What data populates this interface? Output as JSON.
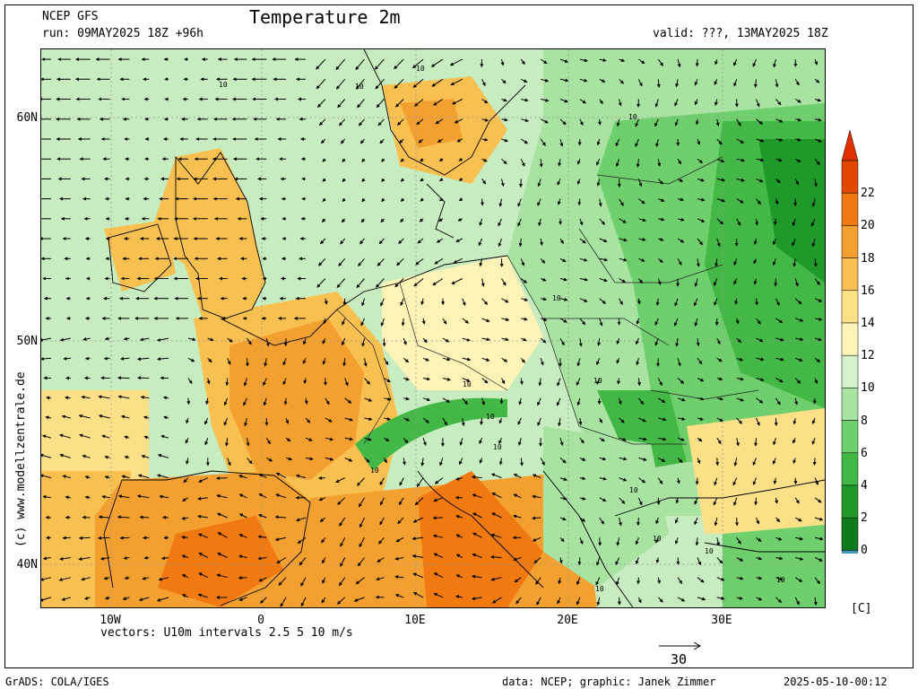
{
  "header": {
    "model": "NCEP GFS",
    "run": "run: 09MAY2025 18Z +96h",
    "title": "Temperature 2m",
    "valid": "valid: ???, 13MAY2025 18Z"
  },
  "axes": {
    "lat_labels": [
      "60N",
      "50N",
      "40N"
    ],
    "lon_labels": [
      "10W",
      "0",
      "10E",
      "20E",
      "30E"
    ]
  },
  "vectors_note": "vectors: U10m intervals 2.5 5 10 m/s",
  "ref_vector_label": "30",
  "colorbar": {
    "levels": [
      "22",
      "20",
      "18",
      "16",
      "14",
      "12",
      "10",
      "8",
      "6",
      "4",
      "2",
      "0"
    ],
    "colors": [
      "#e24700",
      "#f07a10",
      "#f4a030",
      "#f8c050",
      "#fce088",
      "#fdf3b6",
      "#d4f3cc",
      "#a8e3a2",
      "#6fcf6c",
      "#44b846",
      "#1f9a2a",
      "#0a7a1a"
    ],
    "top_arrow_color": "#e03000",
    "bottom_arrow_color": "#3a9ab8",
    "unit": "[C]"
  },
  "contour_label": "10",
  "watermark": "(c) www.modellzentrale.de",
  "footer": {
    "left": "GrADS: COLA/IGES",
    "credits": "data: NCEP; graphic: Janek Zimmer",
    "timestamp": "2025-05-10-00:12"
  }
}
